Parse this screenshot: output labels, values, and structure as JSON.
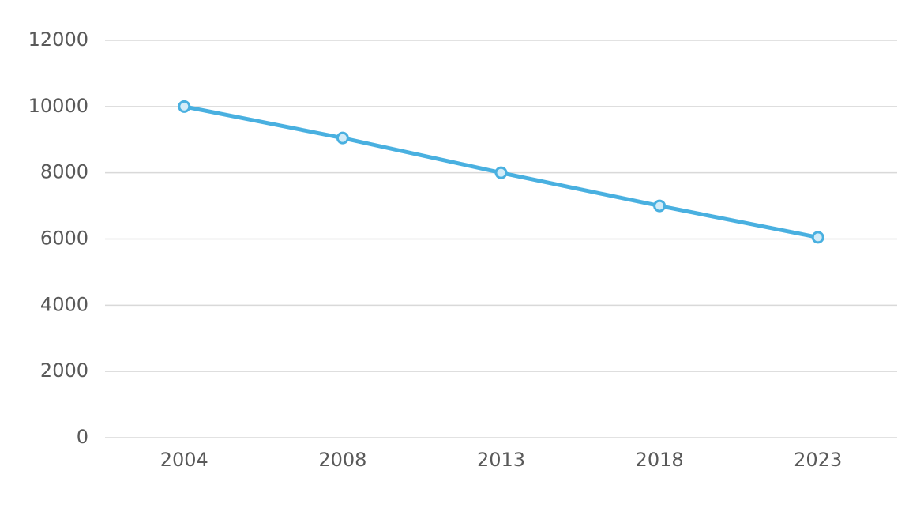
{
  "chart_data": {
    "type": "line",
    "categories": [
      "2004",
      "2008",
      "2013",
      "2018",
      "2023"
    ],
    "values": [
      10000,
      9050,
      8000,
      7000,
      6050
    ],
    "color": "#49b0e0",
    "ylim": [
      0,
      12000
    ],
    "yticks": [
      0,
      2000,
      4000,
      6000,
      8000,
      10000,
      12000
    ],
    "grid": true
  }
}
